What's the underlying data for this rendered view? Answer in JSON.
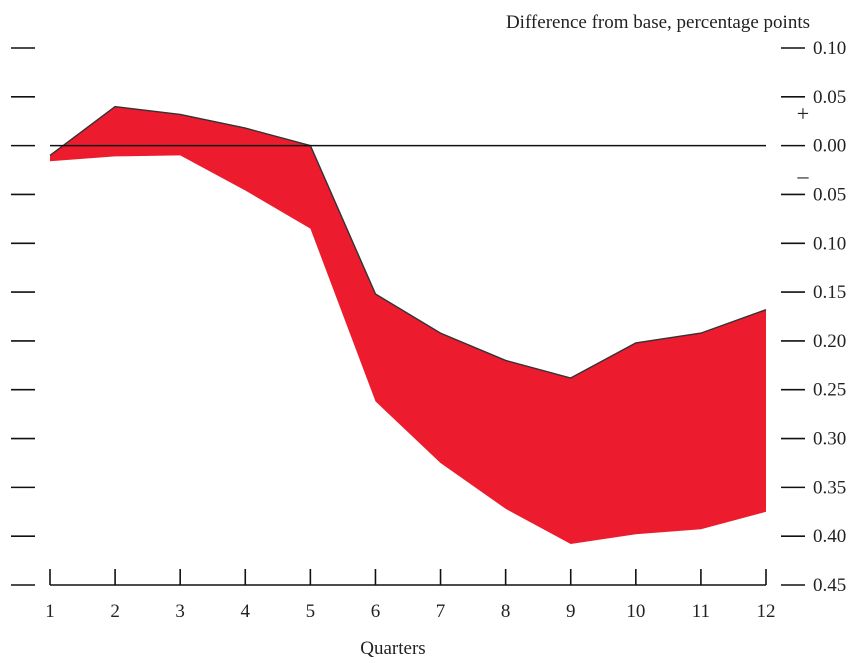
{
  "chart_data": {
    "type": "area",
    "ylabel": "Difference from base, percentage points",
    "xlabel": "Quarters",
    "x": [
      1,
      2,
      3,
      4,
      5,
      6,
      7,
      8,
      9,
      10,
      11,
      12
    ],
    "x_tick_labels": [
      "1",
      "2",
      "3",
      "4",
      "5",
      "6",
      "7",
      "8",
      "9",
      "10",
      "11",
      "12"
    ],
    "ylim": [
      -0.45,
      0.1
    ],
    "y_ticks": [
      0.1,
      0.05,
      0.0,
      -0.05,
      -0.1,
      -0.15,
      -0.2,
      -0.25,
      -0.3,
      -0.35,
      -0.4,
      -0.45
    ],
    "y_tick_labels": [
      "0.10",
      "0.05",
      "0.00",
      "0.05",
      "0.10",
      "0.15",
      "0.20",
      "0.25",
      "0.30",
      "0.35",
      "0.40",
      "0.45"
    ],
    "band": {
      "upper": [
        -0.01,
        0.04,
        0.032,
        0.018,
        0.0,
        -0.152,
        -0.192,
        -0.22,
        -0.238,
        -0.202,
        -0.192,
        -0.168
      ],
      "lower": [
        -0.016,
        -0.011,
        -0.01,
        -0.046,
        -0.085,
        -0.262,
        -0.325,
        -0.372,
        -0.408,
        -0.398,
        -0.393,
        -0.375
      ],
      "color": "#ed1b2e"
    },
    "zero_line": 0.0,
    "sign_labels": {
      "plus": "+",
      "minus": "–"
    },
    "grid": false
  }
}
